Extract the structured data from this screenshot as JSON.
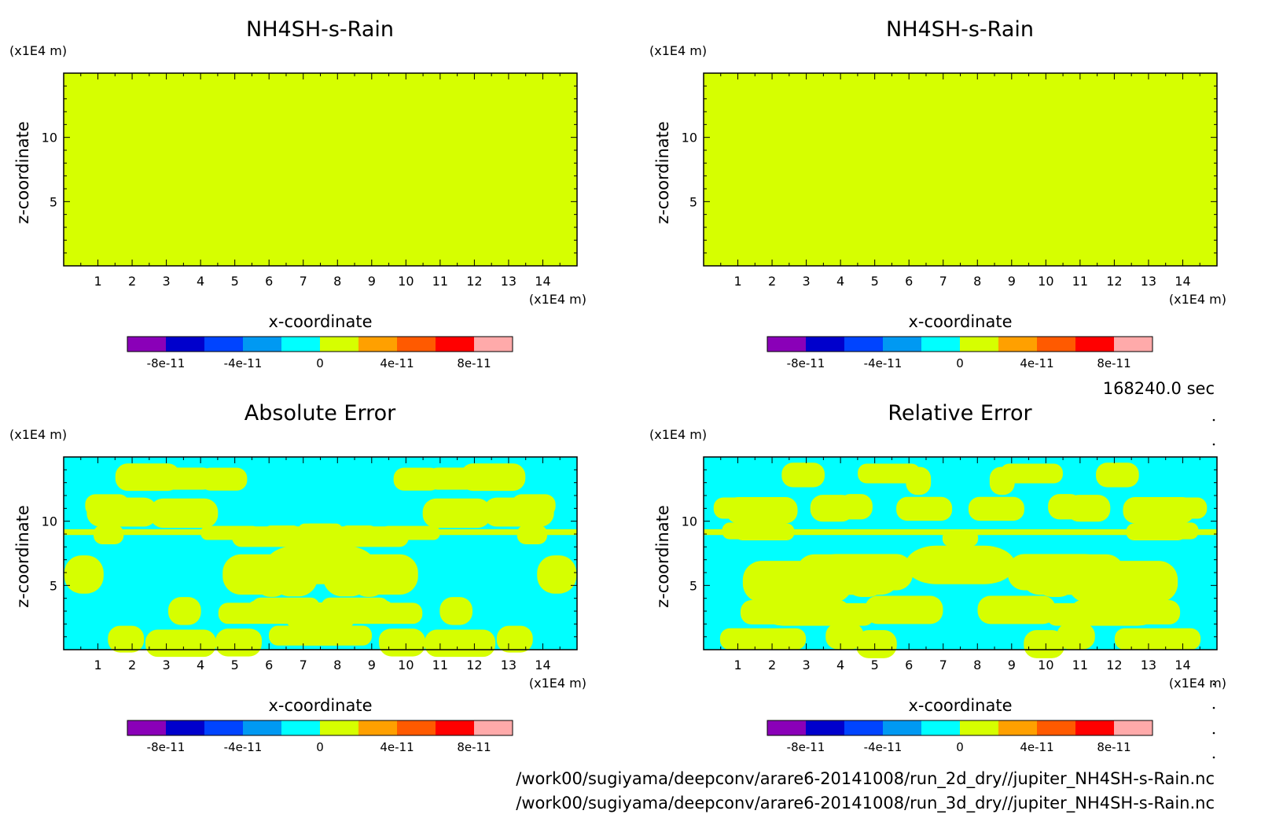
{
  "colors": {
    "levels": [
      "#8a00b8",
      "#0000cc",
      "#0044ff",
      "#0099f2",
      "#00ffff",
      "#d6ff00",
      "#ffa000",
      "#ff5a00",
      "#ff0000",
      "#ffaaaa"
    ],
    "cyan": "#00ffff",
    "yellow": "#d6ff00"
  },
  "chart_data": [
    {
      "type": "heatmap",
      "title": "NH4SH-s-Rain",
      "xlabel": "x-coordinate",
      "ylabel": "z-coordinate",
      "xunit": "(x1E4 m)",
      "yunit": "(x1E4 m)",
      "xlim": [
        0,
        15
      ],
      "ylim": [
        0,
        15
      ],
      "xticks": [
        "1",
        "2",
        "3",
        "4",
        "5",
        "6",
        "7",
        "8",
        "9",
        "10",
        "11",
        "12",
        "13",
        "14"
      ],
      "yticks": [
        "5",
        "10"
      ],
      "field": "uniform",
      "value": 0,
      "colorbar": {
        "levels": [
          -1e-10,
          -8e-11,
          -6e-11,
          -4e-11,
          -2e-11,
          0,
          2e-11,
          4e-11,
          6e-11,
          8e-11,
          1e-10
        ],
        "labels": [
          "-8e-11",
          "-4e-11",
          "0",
          "4e-11",
          "8e-11"
        ]
      }
    },
    {
      "type": "heatmap",
      "title": "NH4SH-s-Rain",
      "xlabel": "x-coordinate",
      "ylabel": "z-coordinate",
      "xunit": "(x1E4 m)",
      "yunit": "(x1E4 m)",
      "xlim": [
        0,
        15
      ],
      "ylim": [
        0,
        15
      ],
      "xticks": [
        "1",
        "2",
        "3",
        "4",
        "5",
        "6",
        "7",
        "8",
        "9",
        "10",
        "11",
        "12",
        "13",
        "14"
      ],
      "yticks": [
        "5",
        "10"
      ],
      "field": "uniform",
      "value": 0,
      "colorbar": {
        "levels": [
          -1e-10,
          -8e-11,
          -6e-11,
          -4e-11,
          -2e-11,
          0,
          2e-11,
          4e-11,
          6e-11,
          8e-11,
          1e-10
        ],
        "labels": [
          "-8e-11",
          "-4e-11",
          "0",
          "4e-11",
          "8e-11"
        ]
      }
    },
    {
      "type": "heatmap",
      "title": "Absolute Error",
      "xlabel": "x-coordinate",
      "ylabel": "z-coordinate",
      "xunit": "(x1E4 m)",
      "yunit": "(x1E4 m)",
      "xlim": [
        0,
        15
      ],
      "ylim": [
        0,
        15
      ],
      "xticks": [
        "1",
        "2",
        "3",
        "4",
        "5",
        "6",
        "7",
        "8",
        "9",
        "10",
        "11",
        "12",
        "13",
        "14"
      ],
      "yticks": [
        "5",
        "10"
      ],
      "field": "patterned",
      "value_range": [
        -2e-11,
        2e-11
      ],
      "colorbar": {
        "levels": [
          -1e-10,
          -8e-11,
          -6e-11,
          -4e-11,
          -2e-11,
          0,
          2e-11,
          4e-11,
          6e-11,
          8e-11,
          1e-10
        ],
        "labels": [
          "-8e-11",
          "-4e-11",
          "0",
          "4e-11",
          "8e-11"
        ]
      }
    },
    {
      "type": "heatmap",
      "title": "Relative Error",
      "xlabel": "x-coordinate",
      "ylabel": "z-coordinate",
      "xunit": "(x1E4 m)",
      "yunit": "(x1E4 m)",
      "xlim": [
        0,
        15
      ],
      "ylim": [
        0,
        15
      ],
      "xticks": [
        "1",
        "2",
        "3",
        "4",
        "5",
        "6",
        "7",
        "8",
        "9",
        "10",
        "11",
        "12",
        "13",
        "14"
      ],
      "yticks": [
        "5",
        "10"
      ],
      "field": "patterned",
      "value_range": [
        -2e-11,
        2e-11
      ],
      "colorbar": {
        "levels": [
          -1e-10,
          -8e-11,
          -6e-11,
          -4e-11,
          -2e-11,
          0,
          2e-11,
          4e-11,
          6e-11,
          8e-11,
          1e-10
        ],
        "labels": [
          "-8e-11",
          "-4e-11",
          "0",
          "4e-11",
          "8e-11"
        ]
      }
    }
  ],
  "time_label": "168240.0 sec",
  "file_paths": [
    "/work00/sugiyama/deepconv/arare6-20141008/run_2d_dry//jupiter_NH4SH-s-Rain.nc",
    "/work00/sugiyama/deepconv/arare6-20141008/run_3d_dry//jupiter_NH4SH-s-Rain.nc"
  ]
}
